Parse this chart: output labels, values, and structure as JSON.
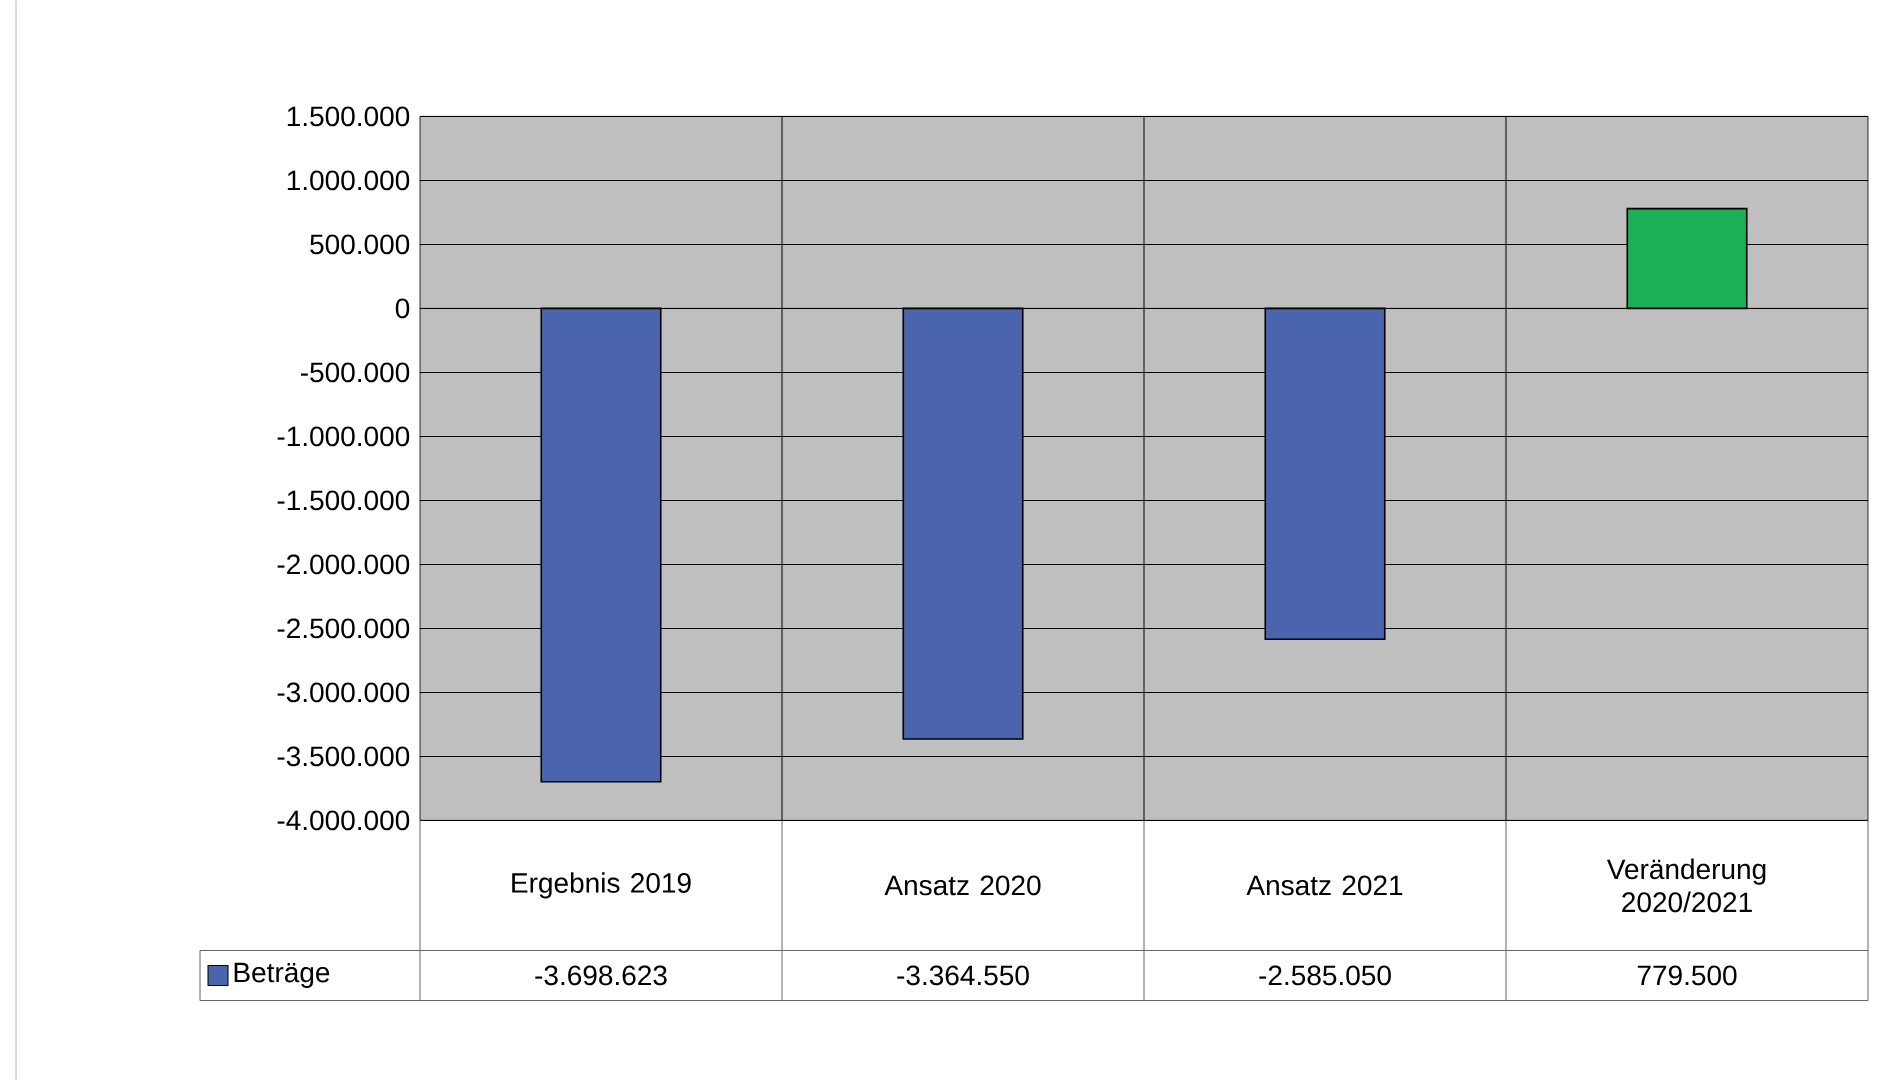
{
  "chart_data": {
    "type": "bar",
    "categories": [
      "Ergebnis 2019",
      "Ansatz 2020",
      "Ansatz 2021",
      "Veränderung 2020/2021"
    ],
    "series": [
      {
        "name": "Beträge",
        "color": "#4a64ae",
        "colors": [
          "#4a64ae",
          "#4a64ae",
          "#4a64ae",
          "#1bb055"
        ],
        "values": [
          -3698623,
          -3364550,
          -2585050,
          779500
        ],
        "value_labels": [
          "-3.698.623",
          "-3.364.550",
          "-2.585.050",
          "779.500"
        ]
      }
    ],
    "ylim": [
      -4000000,
      1500000
    ],
    "yticks": [
      {
        "value": -4000000,
        "label": "-4.000.000"
      },
      {
        "value": -3500000,
        "label": "-3.500.000"
      },
      {
        "value": -3000000,
        "label": "-3.000.000"
      },
      {
        "value": -2500000,
        "label": "-2.500.000"
      },
      {
        "value": -2000000,
        "label": "-2.000.000"
      },
      {
        "value": -1500000,
        "label": "-1.500.000"
      },
      {
        "value": -1000000,
        "label": "-1.000.000"
      },
      {
        "value": -500000,
        "label": "-500.000"
      },
      {
        "value": 0,
        "label": "0"
      },
      {
        "value": 500000,
        "label": "500.000"
      },
      {
        "value": 1000000,
        "label": "1.000.000"
      },
      {
        "value": 1500000,
        "label": "1.500.000"
      }
    ],
    "grid": true,
    "legend": "bottom"
  }
}
